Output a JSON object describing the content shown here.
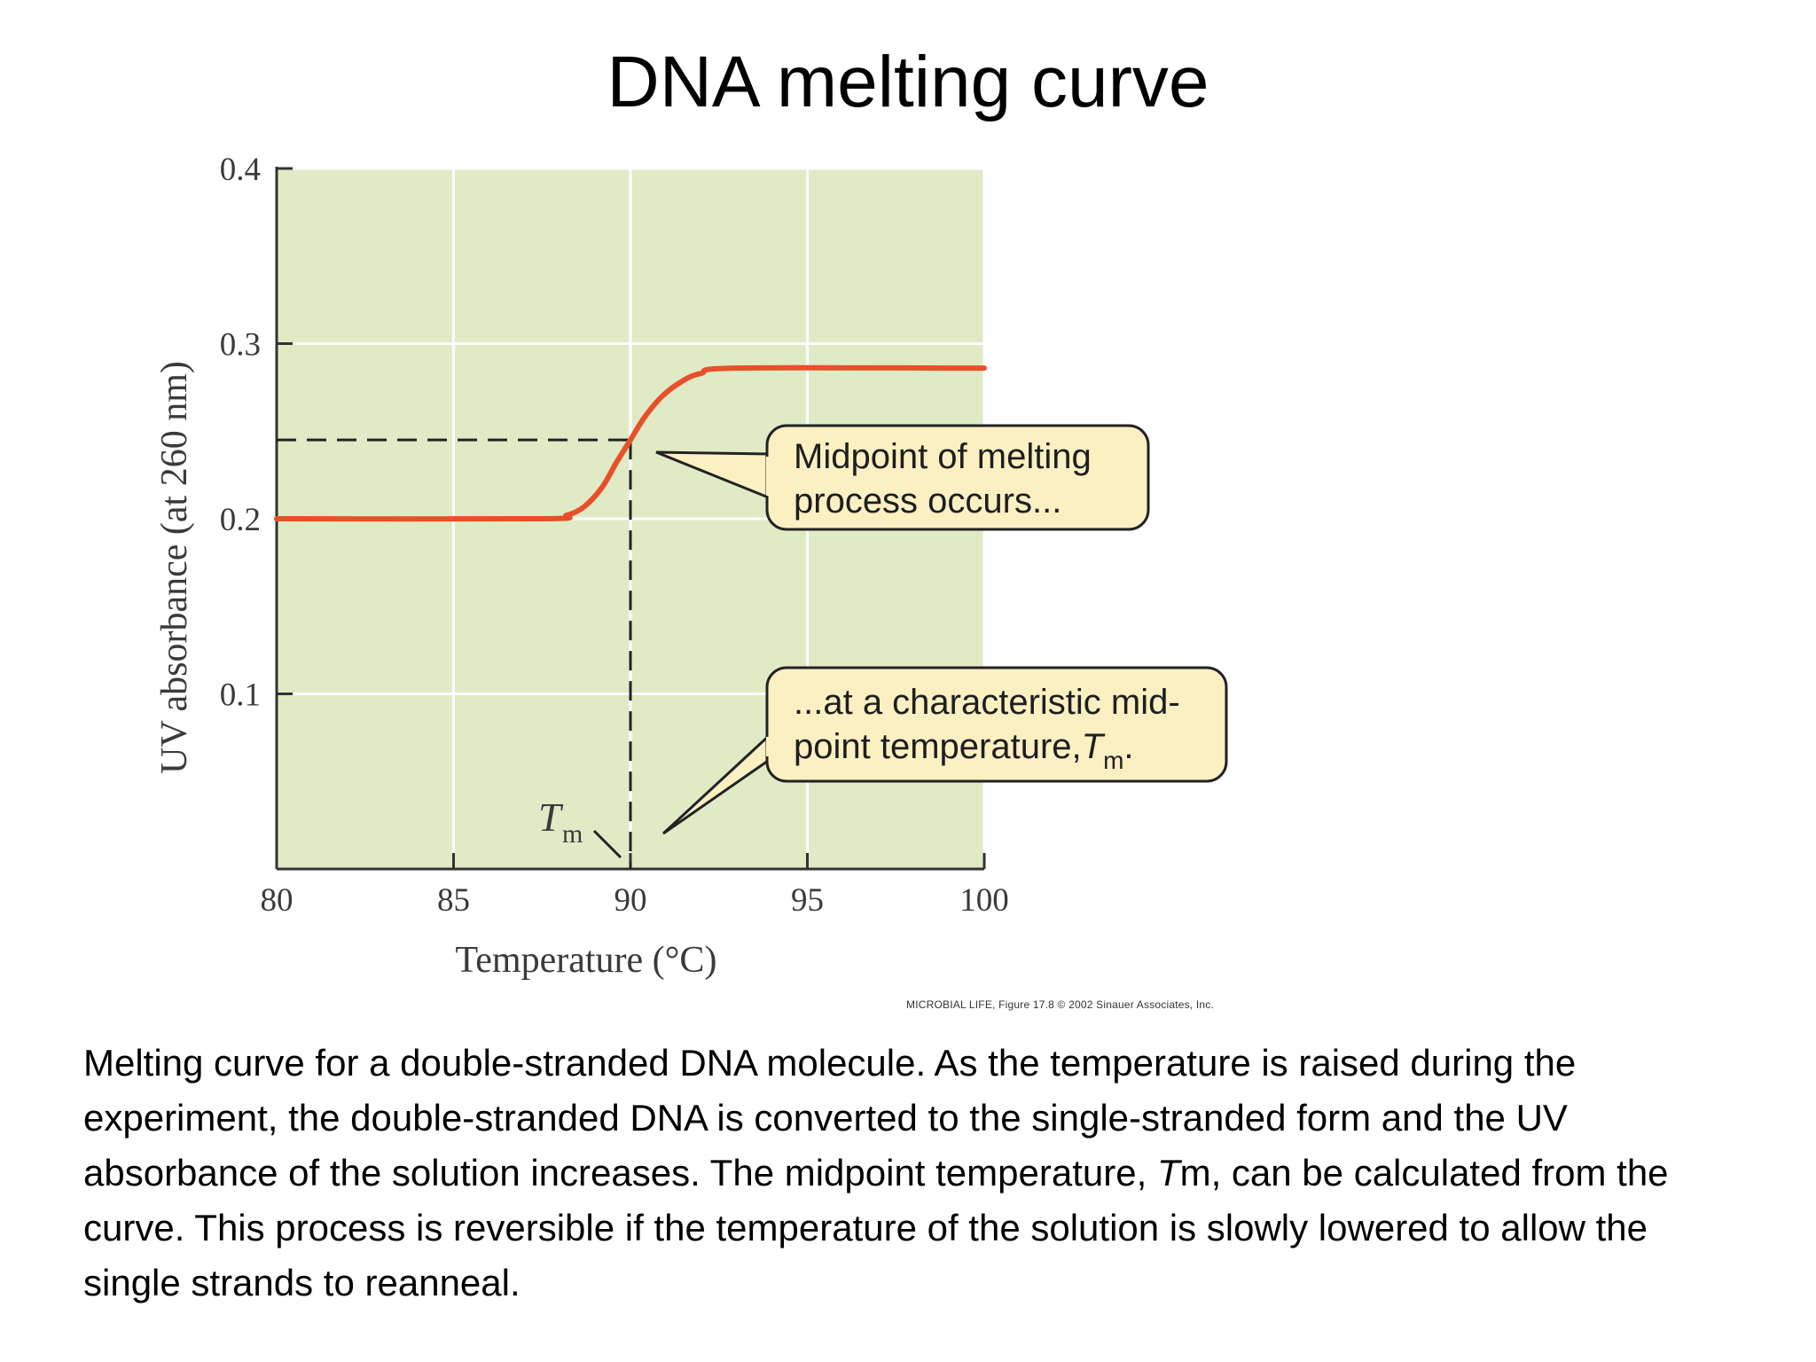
{
  "slide": {
    "title": "DNA melting curve",
    "credit": "MICROBIAL LIFE, Figure 17.8 © 2002 Sinauer Associates, Inc.",
    "caption": {
      "part1": "Melting curve for a double-stranded DNA molecule. As the temperature is raised during the experiment, the double-stranded DNA is converted to the single-stranded form and the UV absorbance of the solution increases. The midpoint temperature, ",
      "italic": "T",
      "part2": "m, can be calculated from the curve. This process is reversible if the temperature of the solution is slowly lowered to allow the single strands to reanneal."
    }
  },
  "chart_data": {
    "type": "line",
    "xlabel": "Temperature (°C)",
    "ylabel": "UV absorbance (at 260 nm)",
    "xlim": [
      80,
      100
    ],
    "ylim": [
      0,
      0.4
    ],
    "x_ticks": [
      80,
      85,
      90,
      95,
      100
    ],
    "y_ticks": [
      0.1,
      0.2,
      0.3,
      0.4
    ],
    "x_tick_labels": [
      "80",
      "85",
      "90",
      "95",
      "100"
    ],
    "y_tick_labels": [
      "0.1",
      "0.2",
      "0.3",
      "0.4"
    ],
    "grid": true,
    "series": [
      {
        "points": [
          [
            80,
            0.2
          ],
          [
            87.5,
            0.2
          ],
          [
            88.2,
            0.202
          ],
          [
            88.7,
            0.207
          ],
          [
            89.2,
            0.218
          ],
          [
            89.6,
            0.232
          ],
          [
            90,
            0.245
          ],
          [
            90.4,
            0.258
          ],
          [
            90.9,
            0.27
          ],
          [
            91.5,
            0.279
          ],
          [
            92,
            0.283
          ],
          [
            93,
            0.286
          ],
          [
            100,
            0.286
          ]
        ]
      }
    ],
    "midpoint": {
      "x": 90,
      "y": 0.245
    },
    "tm_label": {
      "main": "T",
      "sub": "m"
    },
    "callouts": [
      {
        "lines": [
          "Midpoint of melting",
          "process occurs..."
        ]
      },
      {
        "lines": [
          "...at a characteristic mid-",
          "point temperature,"
        ],
        "tm_main": "T",
        "tm_sub": "m",
        "tm_suffix": "."
      }
    ],
    "colors": {
      "plot_background": "#e0ebc6",
      "grid": "#ffffff",
      "curve": "#e8502a",
      "axis": "#333333",
      "callout_fill": "#fbf0c2",
      "callout_stroke": "#222222"
    }
  }
}
